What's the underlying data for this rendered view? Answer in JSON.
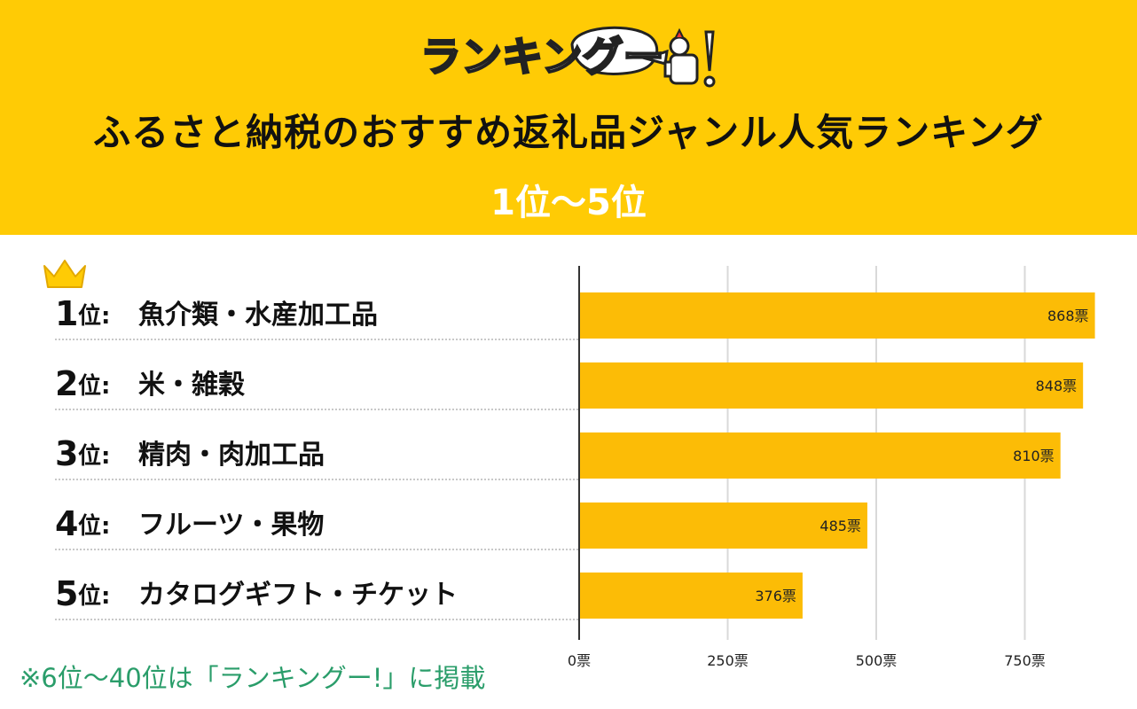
{
  "header": {
    "logo_text": "ランキングー!",
    "title": "ふるさと納税のおすすめ返礼品ジャンル人気ランキング",
    "subtitle": "1位〜5位"
  },
  "ranks": [
    {
      "num": "1",
      "suffix": "位:",
      "label": "魚介類・水産加工品"
    },
    {
      "num": "2",
      "suffix": "位:",
      "label": "米・雑穀"
    },
    {
      "num": "3",
      "suffix": "位:",
      "label": "精肉・肉加工品"
    },
    {
      "num": "4",
      "suffix": "位:",
      "label": "フルーツ・果物"
    },
    {
      "num": "5",
      "suffix": "位:",
      "label": "カタログギフト・チケット"
    }
  ],
  "chart_data": {
    "type": "bar",
    "orientation": "horizontal",
    "categories": [
      "魚介類・水産加工品",
      "米・雑穀",
      "精肉・肉加工品",
      "フルーツ・果物",
      "カタログギフト・チケット"
    ],
    "values": [
      868,
      848,
      810,
      485,
      376
    ],
    "value_labels": [
      "868票",
      "848票",
      "810票",
      "485票",
      "376票"
    ],
    "xlim": [
      0,
      900
    ],
    "xticks": [
      0,
      250,
      500,
      750
    ],
    "xtick_labels": [
      "0票",
      "250票",
      "500票",
      "750票"
    ],
    "grid": true,
    "bar_color": "#fcbc06"
  },
  "footnote": "※6位〜40位は「ランキングー!」に掲載",
  "colors": {
    "header_bg": "#ffcb05",
    "bar": "#fcbc06",
    "footnote": "#2a9d6a",
    "crown": "#ffcb05"
  }
}
